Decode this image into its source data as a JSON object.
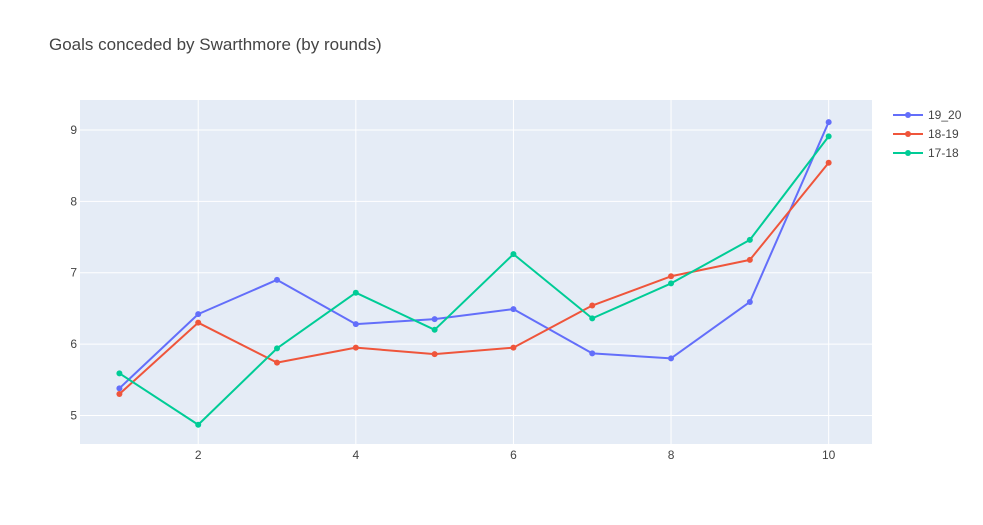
{
  "chart_data": {
    "type": "line",
    "title": "Goals conceded by Swarthmore (by rounds)",
    "xlabel": "",
    "ylabel": "",
    "x": [
      1,
      2,
      3,
      4,
      5,
      6,
      7,
      8,
      9,
      10
    ],
    "xlim": [
      0.5,
      10.55
    ],
    "ylim": [
      4.6,
      9.42
    ],
    "xticks": [
      2,
      4,
      6,
      8,
      10
    ],
    "yticks": [
      5,
      6,
      7,
      8,
      9
    ],
    "grid": true,
    "legend": "top-right",
    "series": [
      {
        "name": "19_20",
        "color": "#636efa",
        "values": [
          5.38,
          6.42,
          6.9,
          6.28,
          6.35,
          6.49,
          5.87,
          5.8,
          6.59,
          9.11
        ]
      },
      {
        "name": "18-19",
        "color": "#ef553b",
        "values": [
          5.3,
          6.3,
          5.74,
          5.95,
          5.86,
          5.95,
          6.54,
          6.95,
          7.18,
          8.54
        ]
      },
      {
        "name": "17-18",
        "color": "#00cc96",
        "values": [
          5.59,
          4.87,
          5.94,
          6.72,
          6.2,
          7.26,
          6.36,
          6.85,
          7.46,
          8.91
        ]
      }
    ]
  }
}
